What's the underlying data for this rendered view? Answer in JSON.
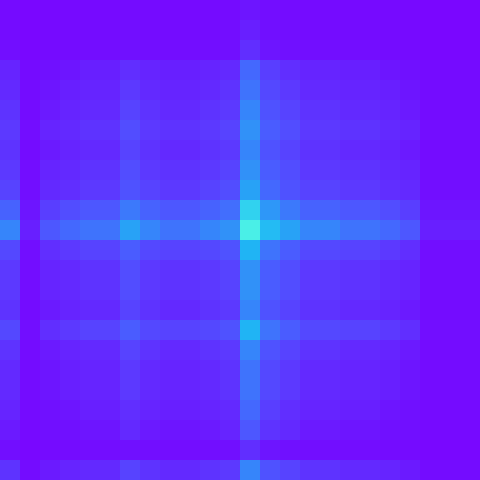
{
  "chart_data": {
    "type": "heatmap",
    "tick_labels": false,
    "zlim": [
      0,
      1
    ],
    "z": [
      [
        0.1,
        0.06,
        0.08,
        0.09,
        0.09,
        0.09,
        0.11,
        0.1,
        0.09,
        0.09,
        0.1,
        0.1,
        0.16,
        0.12,
        0.11,
        0.1,
        0.1,
        0.09,
        0.09,
        0.09,
        0.08,
        0.06,
        0.06,
        0.06
      ],
      [
        0.11,
        0.06,
        0.09,
        0.1,
        0.11,
        0.11,
        0.13,
        0.11,
        0.11,
        0.11,
        0.11,
        0.12,
        0.18,
        0.14,
        0.13,
        0.11,
        0.11,
        0.11,
        0.11,
        0.1,
        0.09,
        0.06,
        0.06,
        0.06
      ],
      [
        0.13,
        0.07,
        0.1,
        0.11,
        0.12,
        0.12,
        0.15,
        0.13,
        0.12,
        0.12,
        0.13,
        0.14,
        0.21,
        0.16,
        0.15,
        0.13,
        0.13,
        0.12,
        0.12,
        0.11,
        0.1,
        0.07,
        0.07,
        0.07
      ],
      [
        0.19,
        0.1,
        0.15,
        0.16,
        0.18,
        0.18,
        0.21,
        0.19,
        0.18,
        0.18,
        0.19,
        0.2,
        0.32,
        0.24,
        0.21,
        0.19,
        0.19,
        0.18,
        0.18,
        0.16,
        0.15,
        0.1,
        0.1,
        0.1
      ],
      [
        0.2,
        0.11,
        0.16,
        0.18,
        0.19,
        0.19,
        0.23,
        0.2,
        0.19,
        0.19,
        0.2,
        0.22,
        0.34,
        0.26,
        0.23,
        0.2,
        0.2,
        0.19,
        0.19,
        0.18,
        0.16,
        0.11,
        0.11,
        0.11
      ],
      [
        0.22,
        0.11,
        0.17,
        0.19,
        0.2,
        0.2,
        0.25,
        0.22,
        0.2,
        0.2,
        0.22,
        0.23,
        0.37,
        0.28,
        0.25,
        0.22,
        0.22,
        0.2,
        0.2,
        0.19,
        0.17,
        0.11,
        0.11,
        0.11
      ],
      [
        0.23,
        0.12,
        0.19,
        0.2,
        0.22,
        0.22,
        0.27,
        0.23,
        0.22,
        0.22,
        0.23,
        0.25,
        0.39,
        0.3,
        0.27,
        0.23,
        0.23,
        0.22,
        0.22,
        0.2,
        0.19,
        0.12,
        0.12,
        0.12
      ],
      [
        0.22,
        0.11,
        0.17,
        0.19,
        0.2,
        0.2,
        0.25,
        0.22,
        0.2,
        0.2,
        0.22,
        0.23,
        0.37,
        0.28,
        0.25,
        0.22,
        0.22,
        0.2,
        0.2,
        0.19,
        0.17,
        0.11,
        0.11,
        0.11
      ],
      [
        0.23,
        0.12,
        0.19,
        0.2,
        0.22,
        0.22,
        0.27,
        0.23,
        0.22,
        0.22,
        0.23,
        0.25,
        0.39,
        0.3,
        0.27,
        0.23,
        0.23,
        0.22,
        0.22,
        0.2,
        0.19,
        0.12,
        0.12,
        0.12
      ],
      [
        0.25,
        0.13,
        0.2,
        0.21,
        0.23,
        0.23,
        0.28,
        0.25,
        0.23,
        0.23,
        0.25,
        0.27,
        0.42,
        0.32,
        0.28,
        0.25,
        0.25,
        0.23,
        0.23,
        0.21,
        0.2,
        0.13,
        0.13,
        0.13
      ],
      [
        0.31,
        0.16,
        0.24,
        0.27,
        0.29,
        0.29,
        0.35,
        0.31,
        0.29,
        0.29,
        0.31,
        0.33,
        0.53,
        0.4,
        0.35,
        0.31,
        0.31,
        0.29,
        0.29,
        0.27,
        0.24,
        0.16,
        0.16,
        0.16
      ],
      [
        0.37,
        0.18,
        0.29,
        0.32,
        0.34,
        0.34,
        0.42,
        0.37,
        0.34,
        0.34,
        0.37,
        0.39,
        0.63,
        0.47,
        0.42,
        0.37,
        0.37,
        0.34,
        0.34,
        0.32,
        0.29,
        0.18,
        0.18,
        0.18
      ],
      [
        0.26,
        0.13,
        0.21,
        0.23,
        0.25,
        0.25,
        0.3,
        0.26,
        0.25,
        0.25,
        0.26,
        0.28,
        0.45,
        0.34,
        0.3,
        0.26,
        0.26,
        0.25,
        0.25,
        0.23,
        0.21,
        0.13,
        0.13,
        0.13
      ],
      [
        0.23,
        0.12,
        0.19,
        0.2,
        0.22,
        0.22,
        0.27,
        0.23,
        0.22,
        0.22,
        0.23,
        0.25,
        0.39,
        0.3,
        0.27,
        0.23,
        0.23,
        0.22,
        0.22,
        0.2,
        0.19,
        0.12,
        0.12,
        0.12
      ],
      [
        0.23,
        0.12,
        0.19,
        0.2,
        0.22,
        0.22,
        0.27,
        0.23,
        0.22,
        0.22,
        0.23,
        0.25,
        0.39,
        0.3,
        0.27,
        0.23,
        0.23,
        0.22,
        0.22,
        0.2,
        0.19,
        0.12,
        0.12,
        0.12
      ],
      [
        0.22,
        0.11,
        0.17,
        0.19,
        0.2,
        0.2,
        0.25,
        0.22,
        0.2,
        0.2,
        0.22,
        0.23,
        0.37,
        0.28,
        0.25,
        0.22,
        0.22,
        0.2,
        0.2,
        0.19,
        0.17,
        0.11,
        0.11,
        0.11
      ],
      [
        0.26,
        0.13,
        0.21,
        0.23,
        0.25,
        0.25,
        0.3,
        0.26,
        0.25,
        0.25,
        0.26,
        0.28,
        0.45,
        0.34,
        0.3,
        0.26,
        0.26,
        0.25,
        0.25,
        0.23,
        0.21,
        0.13,
        0.13,
        0.13
      ],
      [
        0.22,
        0.11,
        0.17,
        0.19,
        0.2,
        0.2,
        0.25,
        0.22,
        0.2,
        0.2,
        0.22,
        0.23,
        0.37,
        0.28,
        0.25,
        0.22,
        0.22,
        0.2,
        0.2,
        0.19,
        0.17,
        0.11,
        0.11,
        0.11
      ],
      [
        0.2,
        0.11,
        0.16,
        0.18,
        0.19,
        0.19,
        0.23,
        0.2,
        0.19,
        0.19,
        0.2,
        0.22,
        0.34,
        0.26,
        0.23,
        0.2,
        0.2,
        0.19,
        0.19,
        0.18,
        0.16,
        0.11,
        0.11,
        0.11
      ],
      [
        0.2,
        0.11,
        0.16,
        0.18,
        0.19,
        0.19,
        0.23,
        0.2,
        0.19,
        0.19,
        0.2,
        0.22,
        0.34,
        0.26,
        0.23,
        0.2,
        0.2,
        0.19,
        0.19,
        0.18,
        0.16,
        0.11,
        0.11,
        0.11
      ],
      [
        0.19,
        0.1,
        0.15,
        0.16,
        0.18,
        0.18,
        0.21,
        0.19,
        0.18,
        0.18,
        0.19,
        0.2,
        0.32,
        0.24,
        0.21,
        0.19,
        0.19,
        0.18,
        0.18,
        0.16,
        0.15,
        0.1,
        0.1,
        0.1
      ],
      [
        0.17,
        0.09,
        0.14,
        0.15,
        0.16,
        0.16,
        0.2,
        0.17,
        0.16,
        0.16,
        0.17,
        0.19,
        0.29,
        0.22,
        0.2,
        0.17,
        0.17,
        0.16,
        0.16,
        0.15,
        0.14,
        0.09,
        0.09,
        0.09
      ],
      [
        0.13,
        0.07,
        0.1,
        0.11,
        0.12,
        0.12,
        0.15,
        0.13,
        0.12,
        0.12,
        0.13,
        0.14,
        0.21,
        0.16,
        0.15,
        0.13,
        0.13,
        0.12,
        0.12,
        0.11,
        0.1,
        0.07,
        0.07,
        0.07
      ],
      [
        0.22,
        0.11,
        0.17,
        0.19,
        0.2,
        0.2,
        0.25,
        0.22,
        0.2,
        0.2,
        0.22,
        0.23,
        0.37,
        0.28,
        0.25,
        0.22,
        0.22,
        0.2,
        0.2,
        0.19,
        0.17,
        0.11,
        0.11,
        0.11
      ]
    ]
  }
}
